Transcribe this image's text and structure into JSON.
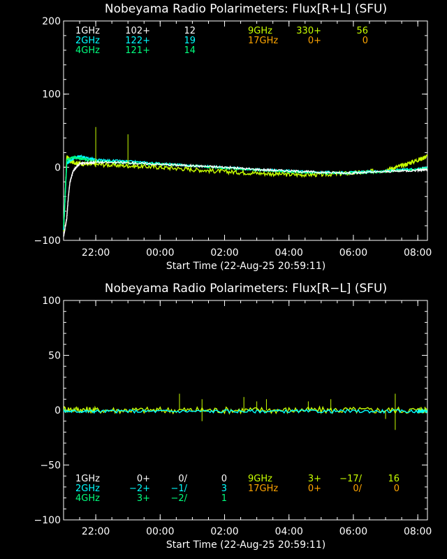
{
  "chart_data": [
    {
      "type": "line",
      "title": "Nobeyama Radio Polarimeters: Flux[R+L] (SFU)",
      "xlabel": "Start Time (22-Aug-25 20:59:11)",
      "ylabel": "",
      "ylim": [
        -100,
        200
      ],
      "yticks": [
        -100,
        0,
        100,
        200
      ],
      "xticks": [
        "22:00",
        "00:00",
        "02:00",
        "04:00",
        "06:00",
        "08:00"
      ],
      "x_tick_hours": [
        22,
        24,
        26,
        28,
        30,
        32
      ],
      "x_range_hours": [
        21.0,
        32.3
      ],
      "legend": [
        {
          "freq": "1GHz",
          "v1": "102+",
          "v2": "",
          "v3": "12",
          "color": "#ffffff"
        },
        {
          "freq": "2GHz",
          "v1": "122+",
          "v2": "",
          "v3": "19",
          "color": "#00ffff"
        },
        {
          "freq": "4GHz",
          "v1": "121+",
          "v2": "",
          "v3": "14",
          "color": "#00ff7f"
        },
        {
          "freq": "9GHz",
          "v1": "330+",
          "v2": "",
          "v3": "56",
          "color": "#c8ff00"
        },
        {
          "freq": "17GHz",
          "v1": "0+",
          "v2": "",
          "v3": "0",
          "color": "#ffa500"
        }
      ],
      "series": [
        {
          "name": "9GHz",
          "color": "#c8ff00",
          "x": [
            21.0,
            21.1,
            21.2,
            21.5,
            22.0,
            23.0,
            24.0,
            25.0,
            26.0,
            27.0,
            28.0,
            29.0,
            30.0,
            31.0,
            31.5,
            32.0,
            32.3
          ],
          "y": [
            -90,
            15,
            8,
            5,
            4,
            2,
            0,
            -3,
            -6,
            -8,
            -10,
            -10,
            -8,
            -4,
            2,
            10,
            15
          ]
        },
        {
          "name": "2GHz",
          "color": "#00ffff",
          "x": [
            21.0,
            21.1,
            21.3,
            21.5,
            22.0,
            23.0,
            24.0,
            25.0,
            26.0,
            27.0,
            28.0,
            29.0,
            30.0,
            31.0,
            32.0,
            32.3
          ],
          "y": [
            -85,
            5,
            12,
            15,
            10,
            8,
            5,
            2,
            0,
            -3,
            -5,
            -7,
            -7,
            -5,
            -2,
            -1
          ]
        },
        {
          "name": "4GHz",
          "color": "#00ff7f",
          "x": [
            21.0,
            21.1,
            21.3,
            21.5,
            22.0,
            23.0,
            24.0,
            25.0,
            26.0,
            27.0,
            28.0,
            29.0,
            30.0,
            31.0,
            32.0,
            32.3
          ],
          "y": [
            -80,
            10,
            14,
            12,
            8,
            6,
            4,
            2,
            -1,
            -4,
            -6,
            -8,
            -8,
            -6,
            -3,
            -2
          ]
        },
        {
          "name": "1GHz",
          "color": "#ffffff",
          "x": [
            21.0,
            21.1,
            21.15,
            21.2,
            21.3,
            21.5,
            22.0,
            23.0,
            24.0,
            25.0,
            26.0,
            27.0,
            28.0,
            29.0,
            30.0,
            31.0,
            32.0,
            32.3
          ],
          "y": [
            -95,
            -70,
            -40,
            -20,
            -5,
            5,
            7,
            6,
            4,
            2,
            0,
            -3,
            -5,
            -7,
            -8,
            -6,
            -4,
            -3
          ]
        }
      ],
      "spikes": [
        {
          "x": 22.0,
          "y": 55,
          "color": "#c8ff00"
        },
        {
          "x": 23.0,
          "y": 45,
          "color": "#c8ff00"
        }
      ]
    },
    {
      "type": "line",
      "title": "Nobeyama Radio Polarimeters: Flux[R−L] (SFU)",
      "xlabel": "Start Time (22-Aug-25 20:59:11)",
      "ylabel": "",
      "ylim": [
        -100,
        100
      ],
      "yticks": [
        -100,
        -50,
        0,
        50,
        100
      ],
      "xticks": [
        "22:00",
        "00:00",
        "02:00",
        "04:00",
        "06:00",
        "08:00"
      ],
      "x_tick_hours": [
        22,
        24,
        26,
        28,
        30,
        32
      ],
      "x_range_hours": [
        21.0,
        32.3
      ],
      "legend": [
        {
          "freq": "1GHz",
          "v1": "0+",
          "v2": "0/",
          "v3": "0",
          "color": "#ffffff"
        },
        {
          "freq": "2GHz",
          "v1": "−2+",
          "v2": "−1/",
          "v3": "3",
          "color": "#00ffff"
        },
        {
          "freq": "4GHz",
          "v1": "3+",
          "v2": "−2/",
          "v3": "1",
          "color": "#00ff7f"
        },
        {
          "freq": "9GHz",
          "v1": "3+",
          "v2": "−17/",
          "v3": "16",
          "color": "#c8ff00"
        },
        {
          "freq": "17GHz",
          "v1": "0+",
          "v2": "0/",
          "v3": "0",
          "color": "#ffa500"
        }
      ],
      "series": [
        {
          "name": "9GHz",
          "color": "#c8ff00",
          "x": [
            21.0,
            22.0,
            24.0,
            26.0,
            28.0,
            30.0,
            32.0,
            32.3
          ],
          "y": [
            1,
            0,
            0,
            0,
            0,
            0,
            0,
            0
          ]
        },
        {
          "name": "2GHz",
          "color": "#00ffff",
          "x": [
            21.0,
            22.0,
            24.0,
            26.0,
            28.0,
            30.0,
            32.0,
            32.3
          ],
          "y": [
            -1,
            -1,
            -1,
            -1,
            -1,
            -1,
            -1,
            -1
          ]
        }
      ],
      "spikes": [
        {
          "x": 24.6,
          "y": 15,
          "color": "#c8ff00"
        },
        {
          "x": 25.3,
          "y": 10,
          "color": "#c8ff00"
        },
        {
          "x": 25.3,
          "y": -10,
          "color": "#c8ff00"
        },
        {
          "x": 26.6,
          "y": 12,
          "color": "#c8ff00"
        },
        {
          "x": 27.0,
          "y": 8,
          "color": "#c8ff00"
        },
        {
          "x": 27.3,
          "y": 10,
          "color": "#c8ff00"
        },
        {
          "x": 28.6,
          "y": 8,
          "color": "#c8ff00"
        },
        {
          "x": 29.3,
          "y": 10,
          "color": "#c8ff00"
        },
        {
          "x": 31.3,
          "y": 15,
          "color": "#c8ff00"
        },
        {
          "x": 31.3,
          "y": -18,
          "color": "#c8ff00"
        },
        {
          "x": 31.0,
          "y": -8,
          "color": "#c8ff00"
        }
      ]
    }
  ]
}
